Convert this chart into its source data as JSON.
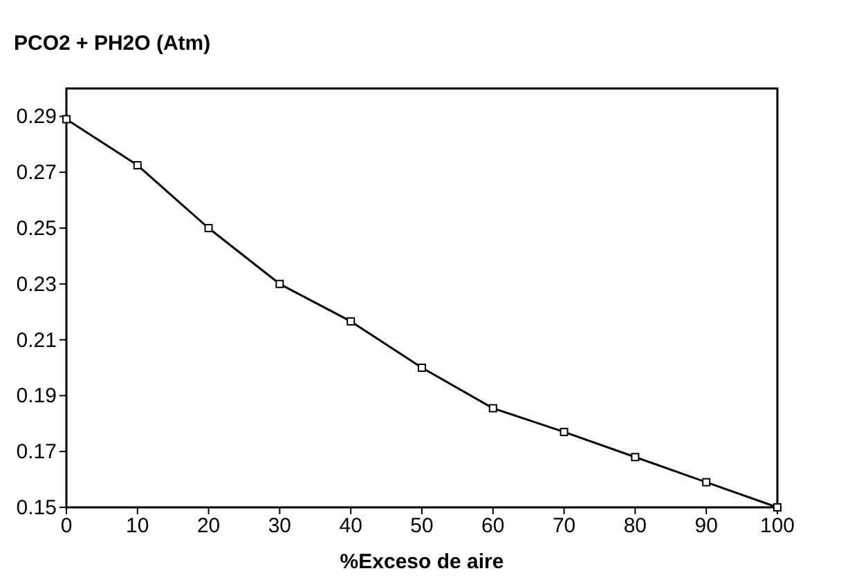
{
  "chart_data": {
    "type": "line",
    "ylabel": "PCO2 + PH2O (Atm)",
    "xlabel": "%Exceso de aire",
    "x": [
      0,
      10,
      20,
      30,
      40,
      50,
      60,
      70,
      80,
      90,
      100
    ],
    "series": [
      {
        "color": "#000000",
        "values": [
          0.289,
          0.2725,
          0.25,
          0.23,
          0.2166,
          0.2,
          0.1855,
          0.177,
          0.168,
          0.159,
          0.15
        ]
      }
    ],
    "xlim": [
      0,
      100
    ],
    "xticks": [
      0,
      10,
      20,
      30,
      40,
      50,
      60,
      70,
      80,
      90,
      100
    ],
    "ylim": [
      0.15,
      0.3
    ],
    "yticks": [
      0.15,
      0.17,
      0.19,
      0.21,
      0.23,
      0.25,
      0.27,
      0.29
    ],
    "marker": "square",
    "line_style": "solid"
  }
}
